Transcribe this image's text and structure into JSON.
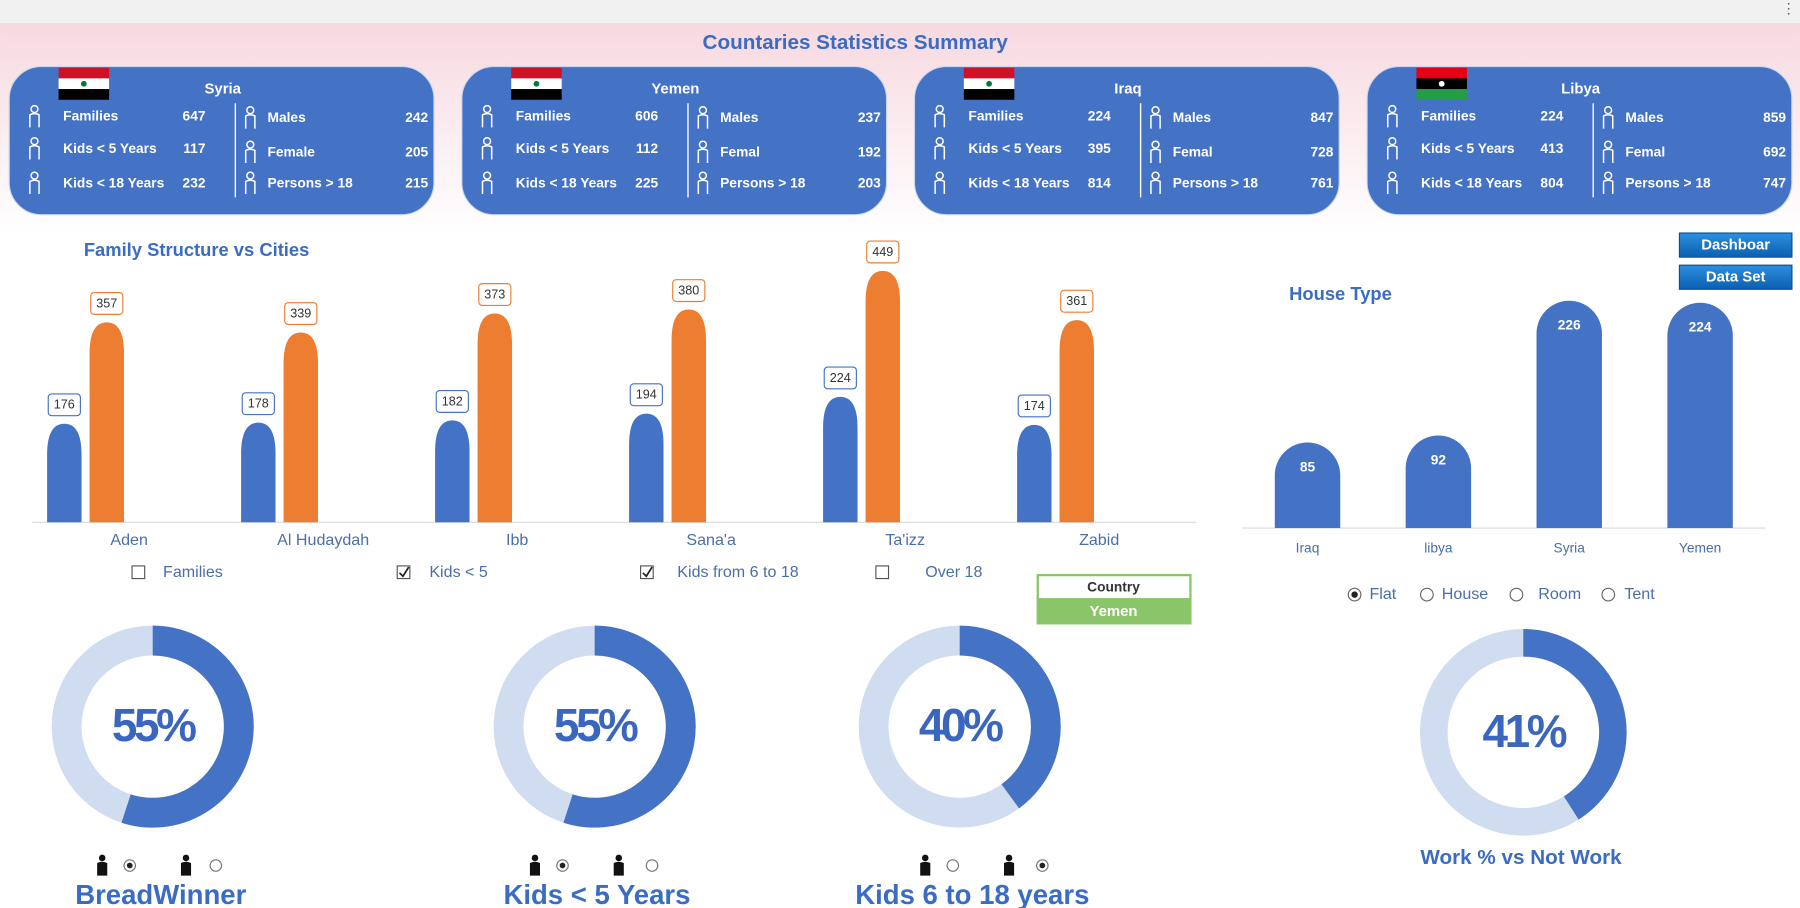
{
  "title": "Countaries Statistics Summary",
  "cards": [
    {
      "country": "Syria",
      "left": [
        {
          "label": "Families",
          "value": 647
        },
        {
          "label": "Kids < 5 Years",
          "value": 117
        },
        {
          "label": "Kids < 18 Years",
          "value": 232
        }
      ],
      "right": [
        {
          "label": "Males",
          "value": 242
        },
        {
          "label": "Female",
          "value": 205
        },
        {
          "label": "Persons > 18",
          "value": 215
        }
      ]
    },
    {
      "country": "Yemen",
      "left": [
        {
          "label": "Families",
          "value": 606
        },
        {
          "label": "Kids < 5 Years",
          "value": 112
        },
        {
          "label": "Kids < 18 Years",
          "value": 225
        }
      ],
      "right": [
        {
          "label": "Males",
          "value": 237
        },
        {
          "label": "Femal",
          "value": 192
        },
        {
          "label": "Persons > 18",
          "value": 203
        }
      ]
    },
    {
      "country": "Iraq",
      "left": [
        {
          "label": "Families",
          "value": 224
        },
        {
          "label": "Kids < 5 Years",
          "value": 395
        },
        {
          "label": "Kids < 18 Years",
          "value": 814
        }
      ],
      "right": [
        {
          "label": "Males",
          "value": 847
        },
        {
          "label": "Femal",
          "value": 728
        },
        {
          "label": "Persons > 18",
          "value": 761
        }
      ]
    },
    {
      "country": "Libya",
      "left": [
        {
          "label": "Families",
          "value": 224
        },
        {
          "label": "Kids < 5 Years",
          "value": 413
        },
        {
          "label": "Kids < 18 Years",
          "value": 804
        }
      ],
      "right": [
        {
          "label": "Males",
          "value": 859
        },
        {
          "label": "Femal",
          "value": 692
        },
        {
          "label": "Persons > 18",
          "value": 747
        }
      ]
    }
  ],
  "buttons": [
    "Dashboar",
    "Data Set"
  ],
  "slicer": {
    "header": "Country",
    "selected": "Yemen"
  },
  "chart_data": [
    {
      "type": "bar",
      "title": "Family Structure vs Cities",
      "categories": [
        "Aden",
        "Al Hudaydah",
        "Ibb",
        "Sana'a",
        "Ta'izz",
        "Zabid"
      ],
      "series": [
        {
          "color": "#4472c4",
          "values": [
            176,
            178,
            182,
            194,
            224,
            174
          ]
        },
        {
          "color": "#ed7d31",
          "values": [
            357,
            339,
            373,
            380,
            449,
            361
          ]
        }
      ],
      "filters": [
        {
          "label": "Families",
          "checked": false
        },
        {
          "label": "Kids < 5",
          "checked": true
        },
        {
          "label": "Kids from 6 to 18",
          "checked": true
        },
        {
          "label": "Over 18",
          "checked": false
        }
      ]
    },
    {
      "type": "bar",
      "title": "House Type",
      "categories": [
        "Iraq",
        "libya",
        "Syria",
        "Yemen"
      ],
      "values": [
        85,
        92,
        226,
        224
      ],
      "color": "#4472c4",
      "filters": [
        {
          "label": "Flat",
          "checked": true
        },
        {
          "label": "House",
          "checked": false
        },
        {
          "label": "Room",
          "checked": false
        },
        {
          "label": "Tent",
          "checked": false
        }
      ]
    },
    {
      "type": "donut",
      "title": "BreadWinner",
      "values": [
        55
      ],
      "value_labels": [
        "55%"
      ],
      "color": "#4472c4",
      "track_color": "#d0dcf0",
      "options": [
        true,
        false
      ]
    },
    {
      "type": "donut",
      "title": "Kids < 5 Years",
      "values": [
        55
      ],
      "value_labels": [
        "55%"
      ],
      "color": "#4472c4",
      "track_color": "#d0dcf0",
      "options": [
        true,
        false
      ]
    },
    {
      "type": "donut",
      "title": "Kids 6 to 18 years",
      "values": [
        40
      ],
      "value_labels": [
        "40%"
      ],
      "color": "#4472c4",
      "track_color": "#d0dcf0",
      "options": [
        false,
        true
      ]
    },
    {
      "type": "donut",
      "title": "Work % vs Not Work",
      "values": [
        41
      ],
      "value_labels": [
        "41%"
      ],
      "color": "#4472c4",
      "track_color": "#d0dcf0"
    }
  ]
}
